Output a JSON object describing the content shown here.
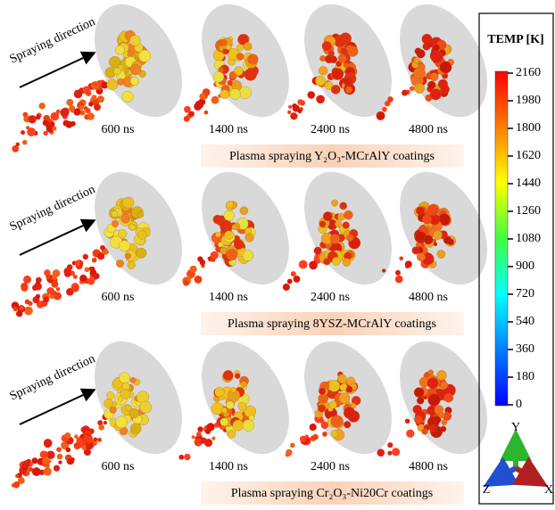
{
  "rows": [
    {
      "direction_label": "Spraying direction",
      "times": [
        "600 ns",
        "1400 ns",
        "2400 ns",
        "4800 ns"
      ],
      "caption": "Plasma spraying Y₂O₃-MCrAlY coatings"
    },
    {
      "direction_label": "Spraying direction",
      "times": [
        "600 ns",
        "1400 ns",
        "2400 ns",
        "4800 ns"
      ],
      "caption": "Plasma spraying 8YSZ-MCrAlY coatings"
    },
    {
      "direction_label": "Spraying direction",
      "times": [
        "600 ns",
        "1400 ns",
        "2400 ns",
        "4800 ns"
      ],
      "caption": "Plasma spraying Cr₂O₃-Ni20Cr coatings"
    }
  ],
  "colorbar": {
    "title": "TEMP [K]",
    "ticks": [
      2160,
      1980,
      1800,
      1620,
      1440,
      1260,
      1080,
      900,
      720,
      540,
      360,
      180,
      0
    ]
  },
  "axes": {
    "y": "Y",
    "z": "Z",
    "x": "X"
  }
}
